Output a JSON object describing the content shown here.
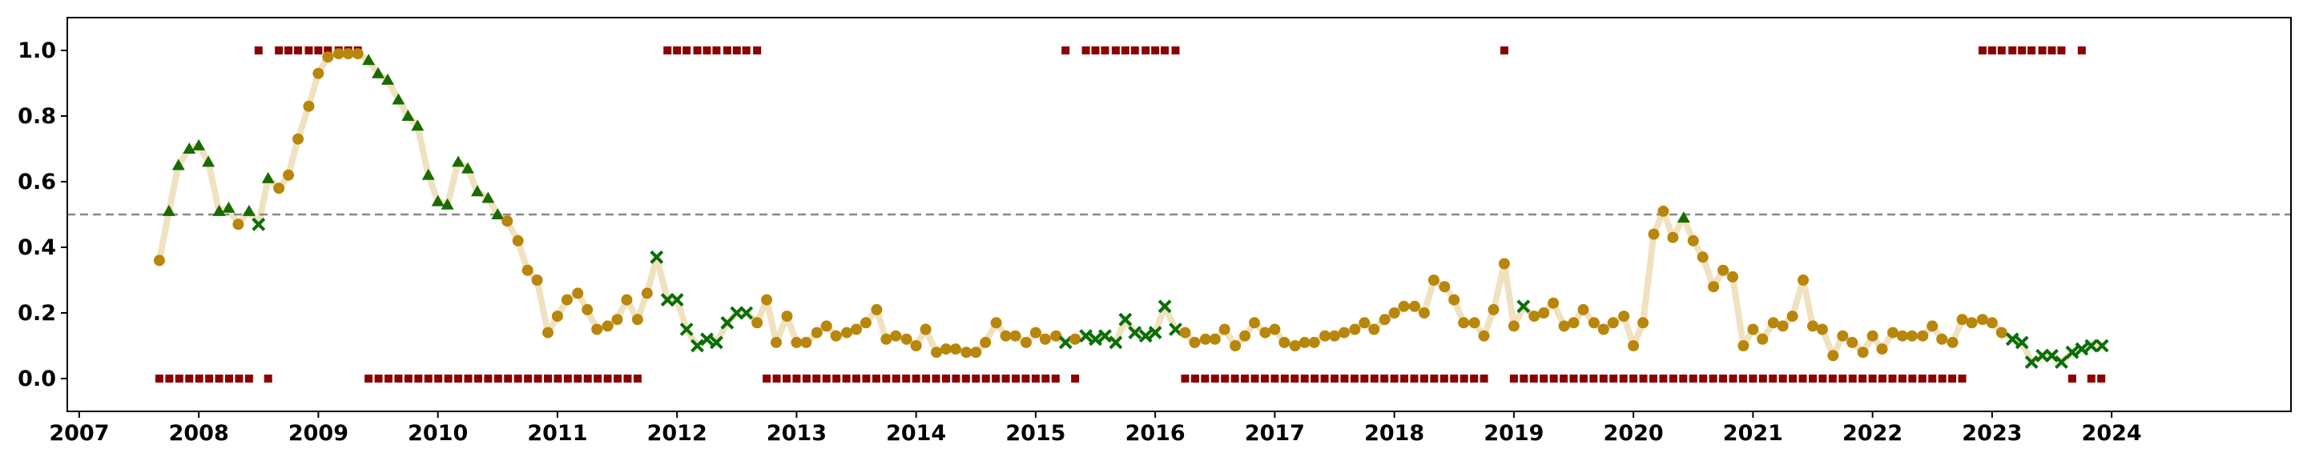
{
  "chart_data": {
    "type": "scatter",
    "title": "",
    "xlabel": "",
    "ylabel": "",
    "xlim": [
      2006.9,
      2025.5
    ],
    "ylim": [
      -0.1,
      1.1
    ],
    "x_ticks": [
      2007,
      2008,
      2009,
      2010,
      2011,
      2012,
      2013,
      2014,
      2015,
      2016,
      2017,
      2018,
      2019,
      2020,
      2021,
      2022,
      2023,
      2024
    ],
    "x_tick_labels": [
      "2007",
      "2008",
      "2009",
      "2010",
      "2011",
      "2012",
      "2013",
      "2014",
      "2015",
      "2016",
      "2017",
      "2018",
      "2019",
      "2020",
      "2021",
      "2022",
      "2023",
      "2024"
    ],
    "y_ticks": [
      0.0,
      0.2,
      0.4,
      0.6,
      0.8,
      1.0
    ],
    "y_tick_labels": [
      "0.0",
      "0.2",
      "0.4",
      "0.6",
      "0.8",
      "1.0"
    ],
    "grid": false,
    "legend": "none",
    "reference_line": {
      "y": 0.5,
      "style": "dashed",
      "color": "#888888"
    },
    "colors": {
      "line": "#f0e2c0",
      "circle": "#b8860b",
      "triangle": "#1a6b00",
      "cross": "#0a6e0a",
      "square": "#8b0000",
      "axis": "#000000"
    },
    "series": {
      "x": [
        2007.67,
        2007.75,
        2007.83,
        2007.92,
        2008.0,
        2008.08,
        2008.17,
        2008.25,
        2008.33,
        2008.42,
        2008.5,
        2008.58,
        2008.67,
        2008.75,
        2008.83,
        2008.92,
        2009.0,
        2009.08,
        2009.17,
        2009.25,
        2009.33,
        2009.42,
        2009.5,
        2009.58,
        2009.67,
        2009.75,
        2009.83,
        2009.92,
        2010.0,
        2010.08,
        2010.17,
        2010.25,
        2010.33,
        2010.42,
        2010.5,
        2010.58,
        2010.67,
        2010.75,
        2010.83,
        2010.92,
        2011.0,
        2011.08,
        2011.17,
        2011.25,
        2011.33,
        2011.42,
        2011.5,
        2011.58,
        2011.67,
        2011.75,
        2011.83,
        2011.92,
        2012.0,
        2012.08,
        2012.17,
        2012.25,
        2012.33,
        2012.42,
        2012.5,
        2012.58,
        2012.67,
        2012.75,
        2012.83,
        2012.92,
        2013.0,
        2013.08,
        2013.17,
        2013.25,
        2013.33,
        2013.42,
        2013.5,
        2013.58,
        2013.67,
        2013.75,
        2013.83,
        2013.92,
        2014.0,
        2014.08,
        2014.17,
        2014.25,
        2014.33,
        2014.42,
        2014.5,
        2014.58,
        2014.67,
        2014.75,
        2014.83,
        2014.92,
        2015.0,
        2015.08,
        2015.17,
        2015.25,
        2015.33,
        2015.42,
        2015.5,
        2015.58,
        2015.67,
        2015.75,
        2015.83,
        2015.92,
        2016.0,
        2016.08,
        2016.17,
        2016.25,
        2016.33,
        2016.42,
        2016.5,
        2016.58,
        2016.67,
        2016.75,
        2016.83,
        2016.92,
        2017.0,
        2017.08,
        2017.17,
        2017.25,
        2017.33,
        2017.42,
        2017.5,
        2017.58,
        2017.67,
        2017.75,
        2017.83,
        2017.92,
        2018.0,
        2018.08,
        2018.17,
        2018.25,
        2018.33,
        2018.42,
        2018.5,
        2018.58,
        2018.67,
        2018.75,
        2018.83,
        2018.92,
        2019.0,
        2019.08,
        2019.17,
        2019.25,
        2019.33,
        2019.42,
        2019.5,
        2019.58,
        2019.67,
        2019.75,
        2019.83,
        2019.92,
        2020.0,
        2020.08,
        2020.17,
        2020.25,
        2020.33,
        2020.42,
        2020.5,
        2020.58,
        2020.67,
        2020.75,
        2020.83,
        2020.92,
        2021.0,
        2021.08,
        2021.17,
        2021.25,
        2021.33,
        2021.42,
        2021.5,
        2021.58,
        2021.67,
        2021.75,
        2021.83,
        2021.92,
        2022.0,
        2022.08,
        2022.17,
        2022.25,
        2022.33,
        2022.42,
        2022.5,
        2022.58,
        2022.67,
        2022.75,
        2022.83,
        2022.92,
        2023.0,
        2023.08,
        2023.17,
        2023.25,
        2023.33,
        2023.42,
        2023.5,
        2023.58,
        2023.67,
        2023.75,
        2023.83,
        2023.92
      ],
      "y": [
        0.36,
        0.51,
        0.65,
        0.7,
        0.71,
        0.66,
        0.51,
        0.52,
        0.47,
        0.51,
        0.47,
        0.61,
        0.58,
        0.62,
        0.73,
        0.83,
        0.93,
        0.98,
        0.99,
        0.99,
        0.99,
        0.97,
        0.93,
        0.91,
        0.85,
        0.8,
        0.77,
        0.62,
        0.54,
        0.53,
        0.66,
        0.64,
        0.57,
        0.55,
        0.5,
        0.48,
        0.42,
        0.33,
        0.3,
        0.14,
        0.19,
        0.24,
        0.26,
        0.21,
        0.15,
        0.16,
        0.18,
        0.24,
        0.18,
        0.26,
        0.37,
        0.24,
        0.24,
        0.15,
        0.1,
        0.12,
        0.11,
        0.17,
        0.2,
        0.2,
        0.17,
        0.24,
        0.11,
        0.19,
        0.11,
        0.11,
        0.14,
        0.16,
        0.13,
        0.14,
        0.15,
        0.17,
        0.21,
        0.12,
        0.13,
        0.12,
        0.1,
        0.15,
        0.08,
        0.09,
        0.09,
        0.08,
        0.08,
        0.11,
        0.17,
        0.13,
        0.13,
        0.11,
        0.14,
        0.12,
        0.13,
        0.11,
        0.12,
        0.13,
        0.12,
        0.13,
        0.11,
        0.18,
        0.14,
        0.13,
        0.14,
        0.22,
        0.15,
        0.14,
        0.11,
        0.12,
        0.12,
        0.15,
        0.1,
        0.13,
        0.17,
        0.14,
        0.15,
        0.11,
        0.1,
        0.11,
        0.11,
        0.13,
        0.13,
        0.14,
        0.15,
        0.17,
        0.15,
        0.18,
        0.2,
        0.22,
        0.22,
        0.2,
        0.3,
        0.28,
        0.24,
        0.17,
        0.17,
        0.13,
        0.21,
        0.35,
        0.16,
        0.22,
        0.19,
        0.2,
        0.23,
        0.16,
        0.17,
        0.21,
        0.17,
        0.15,
        0.17,
        0.19,
        0.1,
        0.17,
        0.44,
        0.51,
        0.43,
        0.49,
        0.42,
        0.37,
        0.28,
        0.33,
        0.31,
        0.1,
        0.15,
        0.12,
        0.17,
        0.16,
        0.19,
        0.3,
        0.16,
        0.15,
        0.07,
        0.13,
        0.11,
        0.08,
        0.13,
        0.09,
        0.14,
        0.13,
        0.13,
        0.13,
        0.16,
        0.12,
        0.11,
        0.18,
        0.17,
        0.18,
        0.17,
        0.14,
        0.12,
        0.11,
        0.05,
        0.07,
        0.07,
        0.05,
        0.08,
        0.09,
        0.1,
        0.1
      ],
      "markers": [
        "o",
        "^",
        "^",
        "^",
        "^",
        "^",
        "^",
        "^",
        "o",
        "^",
        "x",
        "^",
        "o",
        "o",
        "o",
        "o",
        "o",
        "o",
        "o",
        "o",
        "o",
        "^",
        "^",
        "^",
        "^",
        "^",
        "^",
        "^",
        "^",
        "^",
        "^",
        "^",
        "^",
        "^",
        "^",
        "o",
        "o",
        "o",
        "o",
        "o",
        "o",
        "o",
        "o",
        "o",
        "o",
        "o",
        "o",
        "o",
        "o",
        "o",
        "x",
        "x",
        "x",
        "x",
        "x",
        "x",
        "x",
        "x",
        "x",
        "x",
        "o",
        "o",
        "o",
        "o",
        "o",
        "o",
        "o",
        "o",
        "o",
        "o",
        "o",
        "o",
        "o",
        "o",
        "o",
        "o",
        "o",
        "o",
        "o",
        "o",
        "o",
        "o",
        "o",
        "o",
        "o",
        "o",
        "o",
        "o",
        "o",
        "o",
        "o",
        "x",
        "o",
        "x",
        "x",
        "x",
        "x",
        "x",
        "x",
        "x",
        "x",
        "x",
        "x",
        "o",
        "o",
        "o",
        "o",
        "o",
        "o",
        "o",
        "o",
        "o",
        "o",
        "o",
        "o",
        "o",
        "o",
        "o",
        "o",
        "o",
        "o",
        "o",
        "o",
        "o",
        "o",
        "o",
        "o",
        "o",
        "o",
        "o",
        "o",
        "o",
        "o",
        "o",
        "o",
        "o",
        "o",
        "x",
        "o",
        "o",
        "o",
        "o",
        "o",
        "o",
        "o",
        "o",
        "o",
        "o",
        "o",
        "o",
        "o",
        "o",
        "o",
        "^",
        "o",
        "o",
        "o",
        "o",
        "o",
        "o",
        "o",
        "o",
        "o",
        "o",
        "o",
        "o",
        "o",
        "o",
        "o",
        "o",
        "o",
        "o",
        "o",
        "o",
        "o",
        "o",
        "o",
        "o",
        "o",
        "o",
        "o",
        "o",
        "o",
        "o",
        "o",
        "o",
        "x",
        "x",
        "x",
        "x",
        "x",
        "x",
        "x",
        "x",
        "x",
        "x",
        "x",
        "o",
        "o"
      ]
    },
    "indicators": {
      "high": [
        2008.5,
        2008.67,
        2008.75,
        2008.83,
        2008.92,
        2009.0,
        2009.08,
        2009.17,
        2009.25,
        2009.33,
        2011.92,
        2012.0,
        2012.08,
        2012.17,
        2012.25,
        2012.33,
        2012.42,
        2012.5,
        2012.58,
        2012.67,
        2015.25,
        2015.42,
        2015.5,
        2015.58,
        2015.67,
        2015.75,
        2015.83,
        2015.92,
        2016.0,
        2016.08,
        2016.17,
        2018.92,
        2022.92,
        2023.0,
        2023.08,
        2023.17,
        2023.25,
        2023.33,
        2023.42,
        2023.5,
        2023.58,
        2023.75
      ],
      "low_ranges": [
        [
          2007.67,
          2008.42
        ],
        [
          2008.58,
          2008.58
        ],
        [
          2009.42,
          2011.75
        ],
        [
          2012.75,
          2015.17
        ],
        [
          2015.33,
          2015.33
        ],
        [
          2016.25,
          2018.83
        ],
        [
          2019.0,
          2022.83
        ],
        [
          2023.67,
          2023.67
        ],
        [
          2023.83,
          2023.92
        ]
      ]
    }
  }
}
